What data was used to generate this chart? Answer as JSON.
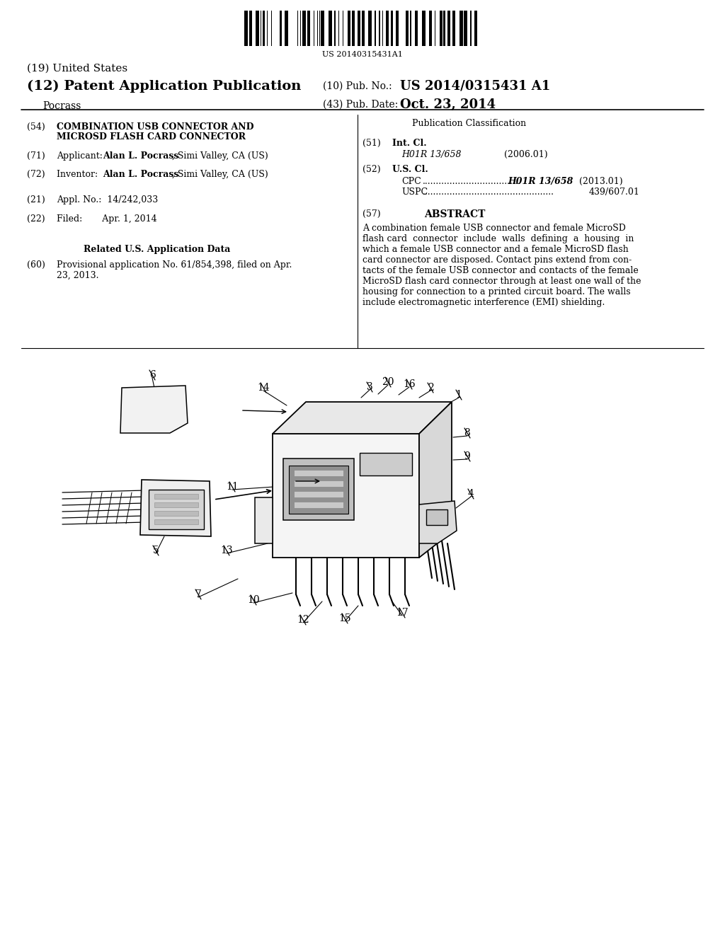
{
  "bg": "#ffffff",
  "barcode_num": "US 20140315431A1",
  "patent_pub": "US 2014/0315431 A1",
  "pub_date": "Oct. 23, 2014",
  "h19": "(19) United States",
  "h12": "(12) Patent Application Publication",
  "inventor": "Pocrass",
  "pub_no_lbl": "(10) Pub. No.:",
  "pub_dt_lbl": "(43) Pub. Date:",
  "s54_title1": "COMBINATION USB CONNECTOR AND",
  "s54_title2": "MICROSD FLASH CARD CONNECTOR",
  "s71_bold": "Alan L. Pocrass",
  "s71_post": ", Simi Valley, CA (US)",
  "s72_bold": "Alan L. Pocrass",
  "s72_post": ", Simi Valley, CA (US)",
  "s51_cls": "H01R 13/658",
  "s51_yr": "(2006.01)",
  "cpc_cls": "H01R 13/658",
  "cpc_yr": "(2013.01)",
  "uspc_cls": "439/607.01",
  "abstract_lbl": "ABSTRACT",
  "abstract_lines": [
    "A combination female USB connector and female MicroSD",
    "flash card  connector  include  walls  defining  a  housing  in",
    "which a female USB connector and a female MicroSD flash",
    "card connector are disposed. Contact pins extend from con-",
    "tacts of the female USB connector and contacts of the female",
    "MicroSD flash card connector through at least one wall of the",
    "housing for connection to a printed circuit board. The walls",
    "include electromagnetic interference (EMI) shielding."
  ]
}
